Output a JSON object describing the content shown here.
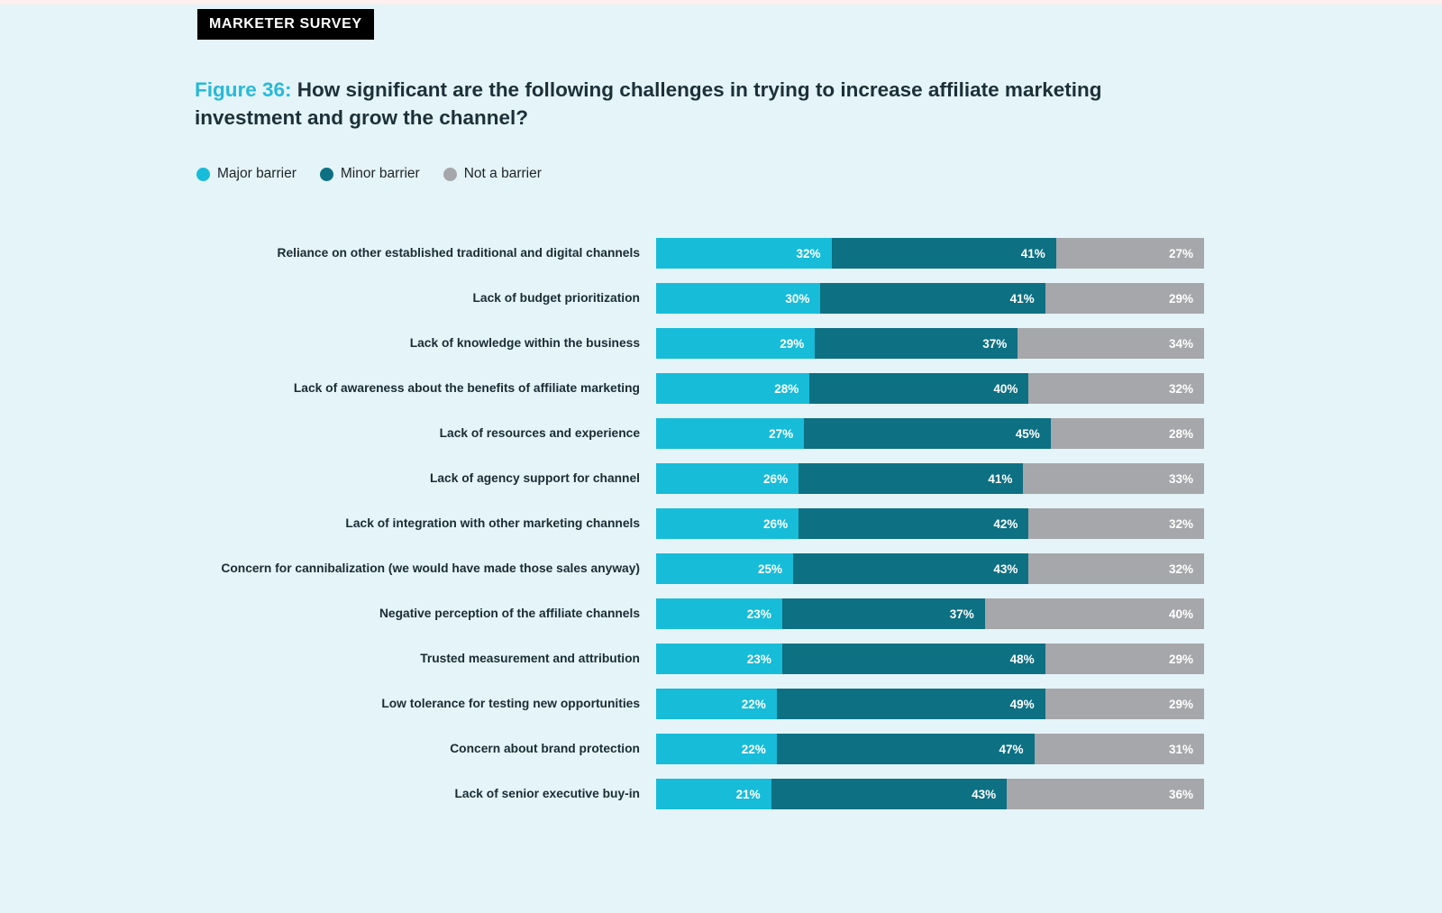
{
  "page": {
    "badge": "MARKETER SURVEY",
    "figure_label": "Figure 36:",
    "title": " How significant are the following challenges in trying to increase affiliate marketing investment and grow the channel?"
  },
  "colors": {
    "background": "#e4f4f9",
    "major_barrier": "#17bcd8",
    "minor_barrier": "#0d7083",
    "not_a_barrier": "#a6a7aa",
    "figure_label_accent": "#29b9d8"
  },
  "legend": [
    {
      "label": "Major barrier",
      "color": "#17bcd8"
    },
    {
      "label": "Minor barrier",
      "color": "#0d7083"
    },
    {
      "label": "Not a barrier",
      "color": "#a6a7aa"
    }
  ],
  "chart_data": {
    "type": "bar",
    "orientation": "horizontal",
    "stacked": true,
    "unit": "%",
    "xlim": [
      0,
      100
    ],
    "value_labels": "inside-right",
    "legend_position": "top-left",
    "grid": false,
    "categories": [
      "Reliance on other established traditional and digital channels",
      "Lack of budget prioritization",
      "Lack of knowledge within the business",
      "Lack of awareness about the benefits of affiliate marketing",
      "Lack of resources and experience",
      "Lack of agency support for channel",
      "Lack of integration with other marketing channels",
      "Concern for cannibalization (we would have made those sales anyway)",
      "Negative perception of the affiliate channels",
      "Trusted measurement and attribution",
      "Low tolerance for testing new opportunities",
      "Concern about brand protection",
      "Lack of senior executive buy-in"
    ],
    "series": [
      {
        "name": "Major barrier",
        "color": "#17bcd8",
        "values": [
          32,
          30,
          29,
          28,
          27,
          26,
          26,
          25,
          23,
          23,
          22,
          22,
          21
        ]
      },
      {
        "name": "Minor barrier",
        "color": "#0d7083",
        "values": [
          41,
          41,
          37,
          40,
          45,
          41,
          42,
          43,
          37,
          48,
          49,
          47,
          43
        ]
      },
      {
        "name": "Not a barrier",
        "color": "#a6a7aa",
        "values": [
          27,
          29,
          34,
          32,
          28,
          33,
          32,
          32,
          40,
          29,
          29,
          31,
          36
        ]
      }
    ]
  }
}
